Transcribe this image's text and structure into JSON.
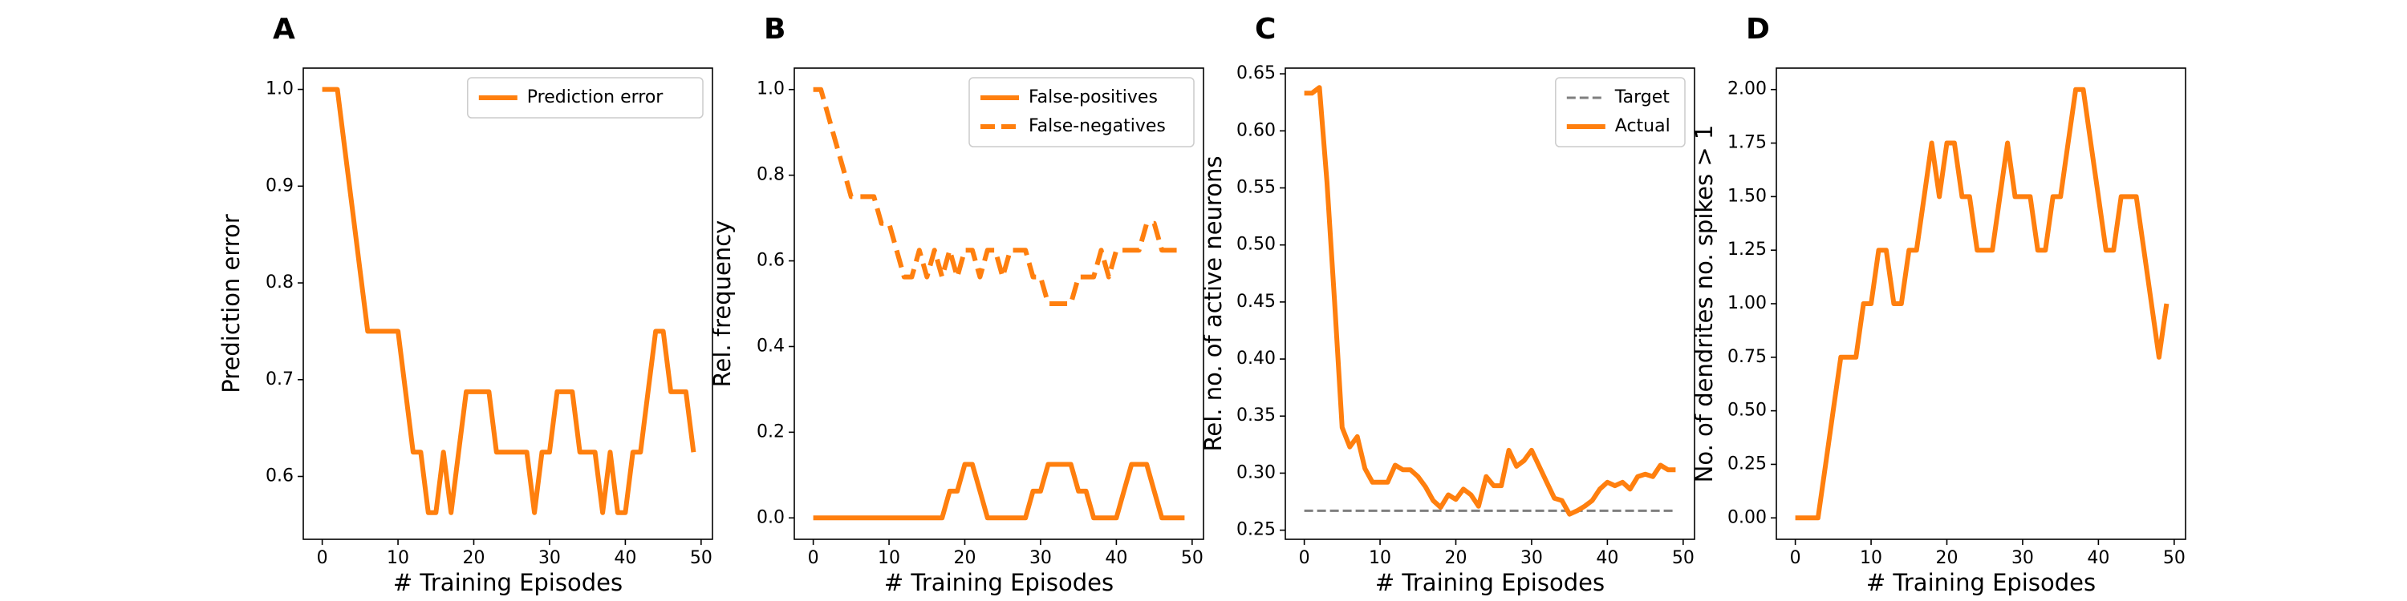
{
  "colors": {
    "series": "#ff7f0e",
    "target": "#7f7f7f",
    "axis": "#000000",
    "legend_edge": "#cccccc"
  },
  "chart_data": [
    {
      "panel": "A",
      "type": "line",
      "xlabel": "# Training Episodes",
      "ylabel": "Prediction error",
      "xlim": [
        -2.5,
        51.5
      ],
      "ylim": [
        0.535,
        1.022
      ],
      "xticks": [
        0,
        10,
        20,
        30,
        40,
        50
      ],
      "yticks": [
        0.6,
        0.7,
        0.8,
        0.9,
        1.0
      ],
      "ytick_labels": [
        "0.6",
        "0.7",
        "0.8",
        "0.9",
        "1.0"
      ],
      "legend": "top-right",
      "x": [
        0,
        1,
        2,
        3,
        4,
        5,
        6,
        7,
        8,
        9,
        10,
        11,
        12,
        13,
        14,
        15,
        16,
        17,
        18,
        19,
        20,
        21,
        22,
        23,
        24,
        25,
        26,
        27,
        28,
        29,
        30,
        31,
        32,
        33,
        34,
        35,
        36,
        37,
        38,
        39,
        40,
        41,
        42,
        43,
        44,
        45,
        46,
        47,
        48,
        49
      ],
      "series": [
        {
          "name": "Prediction error",
          "style": "solid",
          "values": [
            1.0,
            1.0,
            1.0,
            0.9375,
            0.875,
            0.8125,
            0.75,
            0.75,
            0.75,
            0.75,
            0.75,
            0.6875,
            0.625,
            0.625,
            0.5625,
            0.5625,
            0.625,
            0.5625,
            0.625,
            0.6875,
            0.6875,
            0.6875,
            0.6875,
            0.625,
            0.625,
            0.625,
            0.625,
            0.625,
            0.5625,
            0.625,
            0.625,
            0.6875,
            0.6875,
            0.6875,
            0.625,
            0.625,
            0.625,
            0.5625,
            0.625,
            0.5625,
            0.5625,
            0.625,
            0.625,
            0.6875,
            0.75,
            0.75,
            0.6875,
            0.6875,
            0.6875,
            0.625
          ]
        }
      ]
    },
    {
      "panel": "B",
      "type": "line",
      "xlabel": "# Training Episodes",
      "ylabel": "Rel. frequency",
      "xlim": [
        -2.5,
        51.5
      ],
      "ylim": [
        -0.05,
        1.05
      ],
      "xticks": [
        0,
        10,
        20,
        30,
        40,
        50
      ],
      "yticks": [
        0.0,
        0.2,
        0.4,
        0.6,
        0.8,
        1.0
      ],
      "ytick_labels": [
        "0.0",
        "0.2",
        "0.4",
        "0.6",
        "0.8",
        "1.0"
      ],
      "legend": "top-right",
      "x": [
        0,
        1,
        2,
        3,
        4,
        5,
        6,
        7,
        8,
        9,
        10,
        11,
        12,
        13,
        14,
        15,
        16,
        17,
        18,
        19,
        20,
        21,
        22,
        23,
        24,
        25,
        26,
        27,
        28,
        29,
        30,
        31,
        32,
        33,
        34,
        35,
        36,
        37,
        38,
        39,
        40,
        41,
        42,
        43,
        44,
        45,
        46,
        47,
        48,
        49
      ],
      "series": [
        {
          "name": "False-positives",
          "style": "solid",
          "values": [
            0,
            0,
            0,
            0,
            0,
            0,
            0,
            0,
            0,
            0,
            0,
            0,
            0,
            0,
            0,
            0,
            0,
            0,
            0.0625,
            0.0625,
            0.125,
            0.125,
            0.0625,
            0,
            0,
            0,
            0,
            0,
            0,
            0.0625,
            0.0625,
            0.125,
            0.125,
            0.125,
            0.125,
            0.0625,
            0.0625,
            0,
            0,
            0,
            0,
            0.0625,
            0.125,
            0.125,
            0.125,
            0.0625,
            0,
            0,
            0,
            0
          ]
        },
        {
          "name": "False-negatives",
          "style": "dashed",
          "values": [
            1.0,
            1.0,
            0.9375,
            0.875,
            0.8125,
            0.75,
            0.75,
            0.75,
            0.75,
            0.6875,
            0.6875,
            0.625,
            0.5625,
            0.5625,
            0.625,
            0.5625,
            0.625,
            0.5625,
            0.625,
            0.5625,
            0.625,
            0.625,
            0.5625,
            0.625,
            0.625,
            0.5625,
            0.625,
            0.625,
            0.625,
            0.5625,
            0.5625,
            0.5,
            0.5,
            0.5,
            0.5,
            0.5625,
            0.5625,
            0.5625,
            0.625,
            0.5625,
            0.625,
            0.625,
            0.625,
            0.625,
            0.6875,
            0.6875,
            0.625,
            0.625,
            0.625,
            0.625
          ]
        }
      ]
    },
    {
      "panel": "C",
      "type": "line",
      "xlabel": "# Training Episodes",
      "ylabel": "Rel. no. of active neurons",
      "xlim": [
        -2.5,
        51.5
      ],
      "ylim": [
        0.242,
        0.655
      ],
      "xticks": [
        0,
        10,
        20,
        30,
        40,
        50
      ],
      "yticks": [
        0.25,
        0.3,
        0.35,
        0.4,
        0.45,
        0.5,
        0.55,
        0.6,
        0.65
      ],
      "ytick_labels": [
        "0.25",
        "0.30",
        "0.35",
        "0.40",
        "0.45",
        "0.50",
        "0.55",
        "0.60",
        "0.65"
      ],
      "legend": "top-right",
      "x": [
        0,
        1,
        2,
        3,
        4,
        5,
        6,
        7,
        8,
        9,
        10,
        11,
        12,
        13,
        14,
        15,
        16,
        17,
        18,
        19,
        20,
        21,
        22,
        23,
        24,
        25,
        26,
        27,
        28,
        29,
        30,
        31,
        32,
        33,
        34,
        35,
        36,
        37,
        38,
        39,
        40,
        41,
        42,
        43,
        44,
        45,
        46,
        47,
        48,
        49
      ],
      "series": [
        {
          "name": "Target",
          "style": "dashed-thin",
          "values": "constant",
          "constant": 0.267
        },
        {
          "name": "Actual",
          "style": "solid",
          "values": [
            0.633,
            0.633,
            0.638,
            0.555,
            0.45,
            0.34,
            0.323,
            0.332,
            0.304,
            0.292,
            0.292,
            0.292,
            0.307,
            0.303,
            0.303,
            0.297,
            0.288,
            0.276,
            0.27,
            0.281,
            0.277,
            0.286,
            0.281,
            0.271,
            0.297,
            0.289,
            0.289,
            0.32,
            0.306,
            0.311,
            0.32,
            0.306,
            0.292,
            0.278,
            0.276,
            0.264,
            0.267,
            0.271,
            0.276,
            0.286,
            0.292,
            0.289,
            0.292,
            0.286,
            0.297,
            0.299,
            0.297,
            0.307,
            0.303,
            0.303
          ]
        }
      ]
    },
    {
      "panel": "D",
      "type": "line",
      "xlabel": "# Training Episodes",
      "ylabel": "No. of dendrites no. spikes > 1",
      "xlim": [
        -2.5,
        51.5
      ],
      "ylim": [
        -0.1,
        2.1
      ],
      "xticks": [
        0,
        10,
        20,
        30,
        40,
        50
      ],
      "yticks": [
        0.0,
        0.25,
        0.5,
        0.75,
        1.0,
        1.25,
        1.5,
        1.75,
        2.0
      ],
      "ytick_labels": [
        "0.00",
        "0.25",
        "0.50",
        "0.75",
        "1.00",
        "1.25",
        "1.50",
        "1.75",
        "2.00"
      ],
      "x": [
        0,
        1,
        2,
        3,
        4,
        5,
        6,
        7,
        8,
        9,
        10,
        11,
        12,
        13,
        14,
        15,
        16,
        17,
        18,
        19,
        20,
        21,
        22,
        23,
        24,
        25,
        26,
        27,
        28,
        29,
        30,
        31,
        32,
        33,
        34,
        35,
        36,
        37,
        38,
        39,
        40,
        41,
        42,
        43,
        44,
        45,
        46,
        47,
        48,
        49
      ],
      "series": [
        {
          "style": "solid",
          "values": [
            0,
            0,
            0,
            0,
            0.25,
            0.5,
            0.75,
            0.75,
            0.75,
            1.0,
            1.0,
            1.25,
            1.25,
            1.0,
            1.0,
            1.25,
            1.25,
            1.5,
            1.75,
            1.5,
            1.75,
            1.75,
            1.5,
            1.5,
            1.25,
            1.25,
            1.25,
            1.5,
            1.75,
            1.5,
            1.5,
            1.5,
            1.25,
            1.25,
            1.5,
            1.5,
            1.75,
            2.0,
            2.0,
            1.75,
            1.5,
            1.25,
            1.25,
            1.5,
            1.5,
            1.5,
            1.25,
            1.0,
            0.75,
            1.0
          ]
        }
      ]
    }
  ]
}
